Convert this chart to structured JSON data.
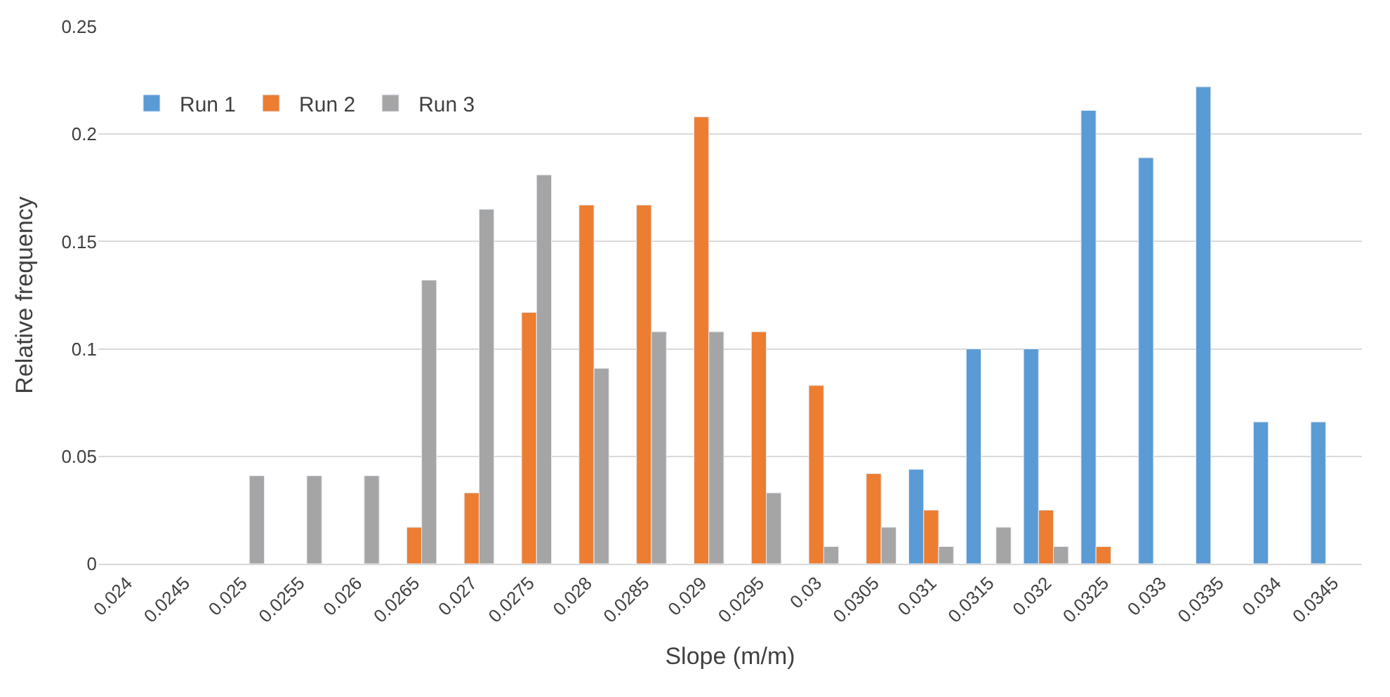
{
  "chart_data": {
    "type": "bar",
    "xlabel": "Slope (m/m)",
    "ylabel": "Relative frequency",
    "categories": [
      "0.024",
      "0.0245",
      "0.025",
      "0.0255",
      "0.026",
      "0.0265",
      "0.027",
      "0.0275",
      "0.028",
      "0.0285",
      "0.029",
      "0.0295",
      "0.03",
      "0.0305",
      "0.031",
      "0.0315",
      "0.032",
      "0.0325",
      "0.033",
      "0.0335",
      "0.034",
      "0.0345"
    ],
    "series": [
      {
        "name": "Run 1",
        "color": "#5b9bd5",
        "values": [
          null,
          null,
          null,
          null,
          null,
          null,
          null,
          null,
          null,
          null,
          null,
          null,
          null,
          null,
          0.044,
          0.1,
          0.1,
          0.211,
          0.189,
          0.222,
          0.066,
          0.066
        ]
      },
      {
        "name": "Run 2",
        "color": "#ed7d31",
        "values": [
          null,
          null,
          null,
          null,
          null,
          0.017,
          0.033,
          0.117,
          0.167,
          0.167,
          0.208,
          0.108,
          0.083,
          0.042,
          0.025,
          null,
          0.025,
          0.008,
          null,
          null,
          null,
          null
        ]
      },
      {
        "name": "Run 3",
        "color": "#a5a5a5",
        "values": [
          null,
          null,
          0.041,
          0.041,
          0.041,
          0.132,
          0.165,
          0.181,
          0.091,
          0.108,
          0.108,
          0.033,
          0.008,
          0.017,
          0.008,
          0.017,
          0.008,
          null,
          null,
          null,
          null,
          null
        ]
      }
    ],
    "ylim": [
      0,
      0.25
    ],
    "yticks": [
      0,
      0.05,
      0.1,
      0.15,
      0.2,
      0.25
    ],
    "grid": "y",
    "legend": "top left"
  }
}
